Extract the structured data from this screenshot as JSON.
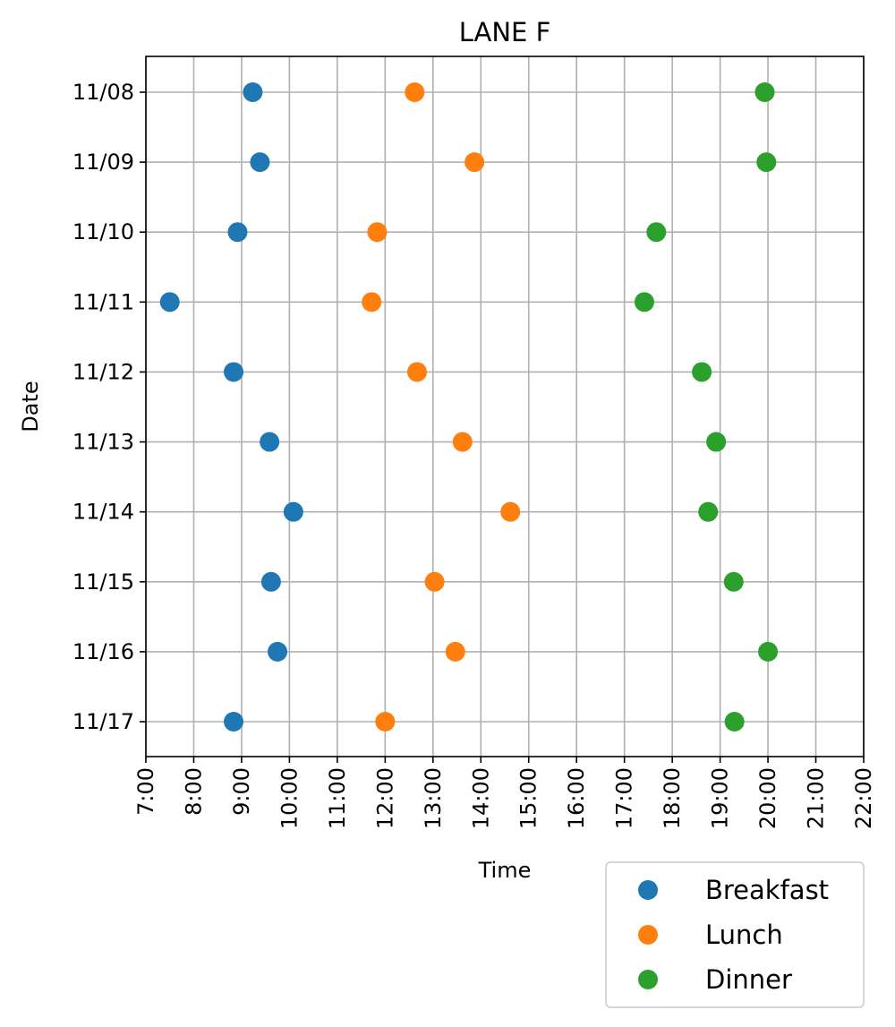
{
  "chart_data": {
    "type": "scatter",
    "title": "LANE F",
    "xlabel": "Time",
    "ylabel": "Date",
    "x_unit": "hour of day",
    "xlim": [
      7,
      22
    ],
    "x_ticks": [
      "7:00",
      "8:00",
      "9:00",
      "10:00",
      "11:00",
      "12:00",
      "13:00",
      "14:00",
      "15:00",
      "16:00",
      "17:00",
      "18:00",
      "19:00",
      "20:00",
      "21:00",
      "22:00"
    ],
    "categories": [
      "11/08",
      "11/09",
      "11/10",
      "11/11",
      "11/12",
      "11/13",
      "11/14",
      "11/15",
      "11/16",
      "11/17"
    ],
    "grid": true,
    "legend_position": "below-right",
    "series": [
      {
        "name": "Breakfast",
        "color": "#1f77b4",
        "times": [
          "9:14",
          "9:23",
          "8:55",
          "7:30",
          "8:50",
          "9:35",
          "10:05",
          "9:37",
          "9:45",
          "8:50"
        ]
      },
      {
        "name": "Lunch",
        "color": "#ff7f0e",
        "times": [
          "12:37",
          "13:52",
          "11:50",
          "11:43",
          "12:40",
          "13:37",
          "14:37",
          "13:02",
          "13:28",
          "12:00"
        ]
      },
      {
        "name": "Dinner",
        "color": "#2ca02c",
        "times": [
          "19:56",
          "19:58",
          "17:40",
          "17:25",
          "18:37",
          "18:55",
          "18:45",
          "19:17",
          "20:00",
          "19:18"
        ]
      }
    ]
  }
}
